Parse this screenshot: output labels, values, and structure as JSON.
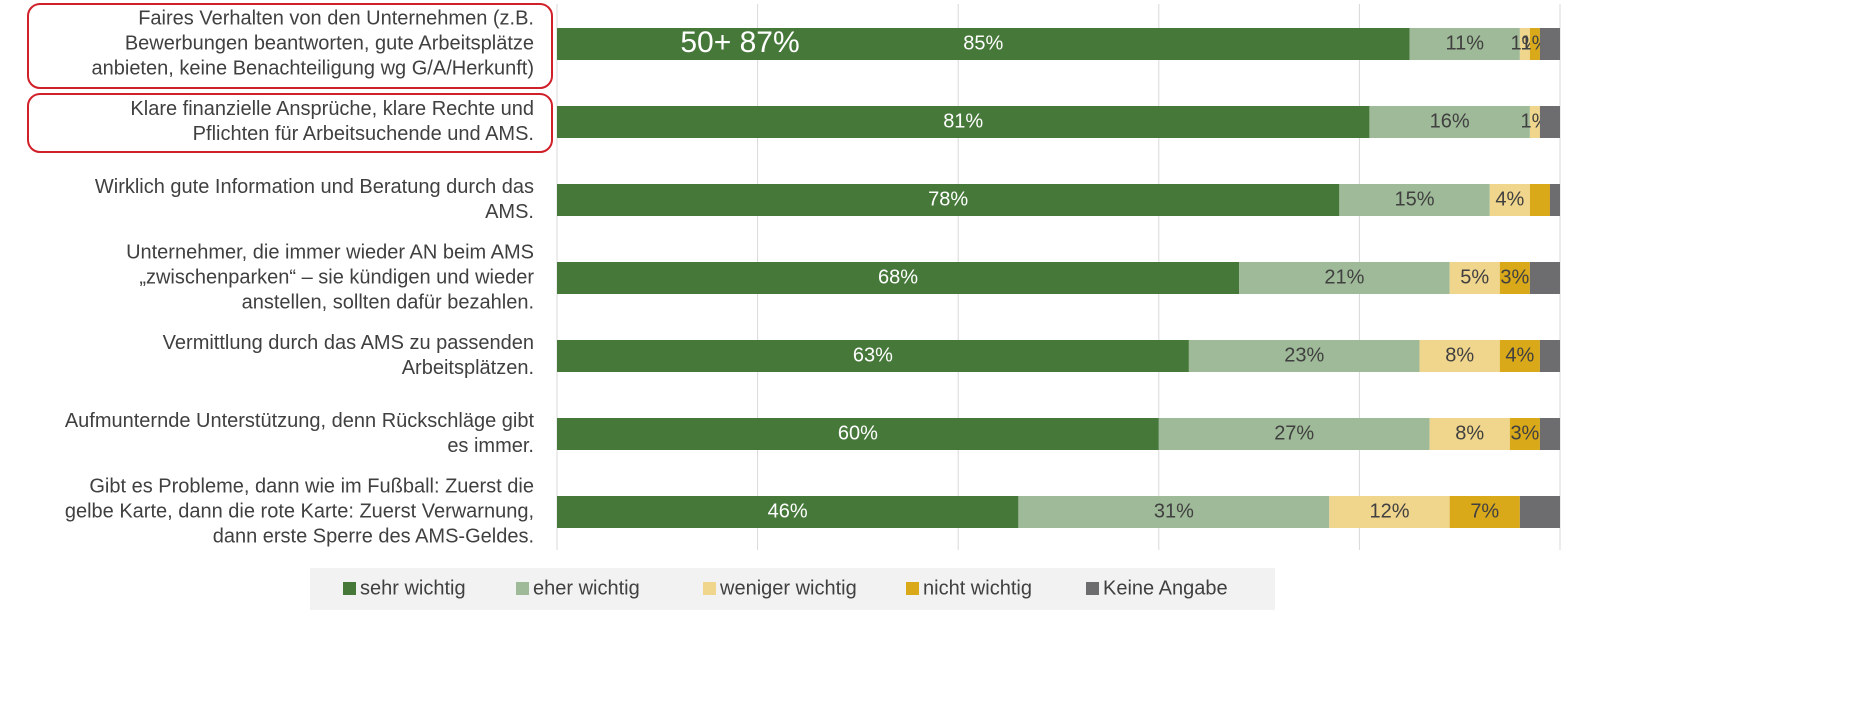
{
  "chart_data": {
    "type": "stacked-bar-horizontal",
    "categories": [
      "Faires Verhalten von den Unternehmen  (z.B.\nBewerbungen beantworten, gute Arbeitsplätze\nanbieten, keine Benachteiligung wg G/A/Herkunft)",
      "Klare finanzielle Ansprüche, klare Rechte und\nPflichten für Arbeitsuchende und AMS.",
      "Wirklich gute Information und Beratung durch das\nAMS.",
      "Unternehmer, die immer wieder AN beim AMS\n„zwischenparken“ – sie kündigen und wieder\nanstellen, sollten dafür bezahlen.",
      "Vermittlung durch das AMS zu passenden\nArbeitsplätzen.",
      "Aufmunternde Unterstützung, denn Rückschläge gibt\nes immer.",
      "Gibt es Probleme, dann wie im Fußball: Zuerst die\ngelbe Karte, dann die rote Karte: Zuerst Verwarnung,\ndann erste Sperre des AMS-Geldes."
    ],
    "series": [
      {
        "name": "sehr wichtig",
        "color": "#46783a",
        "values": [
          85,
          81,
          78,
          68,
          63,
          60,
          46
        ],
        "value_labels": [
          "85%",
          "81%",
          "78%",
          "68%",
          "63%",
          "60%",
          "46%"
        ]
      },
      {
        "name": "eher wichtig",
        "color": "#9fba98",
        "values": [
          11,
          16,
          15,
          21,
          23,
          27,
          31
        ],
        "value_labels": [
          "11%",
          "16%",
          "15%",
          "21%",
          "23%",
          "27%",
          "31%"
        ]
      },
      {
        "name": "weniger wichtig",
        "color": "#f0d58c",
        "values": [
          1,
          1,
          4,
          5,
          8,
          8,
          12
        ],
        "value_labels": [
          "1%",
          "1%",
          "4%",
          "5%",
          "8%",
          "8%",
          "12%"
        ]
      },
      {
        "name": "nicht wichtig",
        "color": "#d9a91a",
        "values": [
          1,
          0,
          2,
          3,
          4,
          3,
          7
        ],
        "value_labels": [
          "1%",
          null,
          null,
          "3%",
          "4%",
          "3%",
          "7%"
        ]
      },
      {
        "name": "Keine Angabe",
        "color": "#6d6d6f",
        "values": [
          2,
          2,
          1,
          3,
          2,
          2,
          4
        ]
      }
    ],
    "annotation": "50+ 87%",
    "xlim": [
      0,
      100
    ],
    "xticks": [
      0,
      20,
      40,
      60,
      80,
      100
    ],
    "grid": true,
    "legend": "bottom"
  }
}
